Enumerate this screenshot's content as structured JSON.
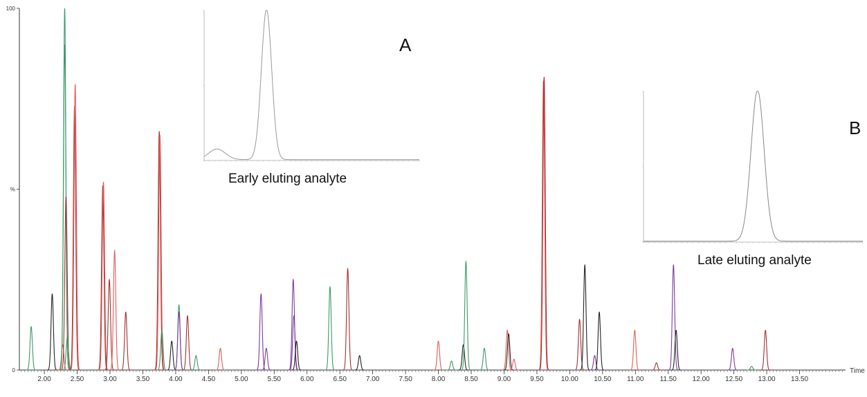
{
  "chart_data": [
    {
      "type": "line",
      "xlabel": "Time",
      "ylabel": "",
      "xlim": [
        1.62,
        14.2
      ],
      "ylim": [
        0,
        100
      ],
      "y_ticks": [
        {
          "value": 0,
          "label": "0"
        },
        {
          "value": 50,
          "label": "%"
        },
        {
          "value": 100,
          "label": "100"
        }
      ],
      "x_ticks": [
        "2.00",
        "2.50",
        "3.00",
        "3.50",
        "4.00",
        "4.50",
        "5.00",
        "5.50",
        "6.00",
        "6.50",
        "7.00",
        "7.50",
        "8.00",
        "8.50",
        "9.00",
        "9.50",
        "10.00",
        "10.50",
        "11.00",
        "11.50",
        "12.00",
        "12.50",
        "13.00",
        "13.50"
      ],
      "grid": false,
      "colors": {
        "green": "#3a9a6a",
        "black": "#222222",
        "red": "#e55a5a",
        "darkred": "#a33030",
        "purple": "#7a3aa0"
      },
      "peaks": [
        {
          "x": 1.8,
          "h": 12,
          "c": "green"
        },
        {
          "x": 2.12,
          "h": 21,
          "c": "black"
        },
        {
          "x": 2.28,
          "h": 7,
          "c": "red"
        },
        {
          "x": 2.31,
          "h": 100,
          "c": "green"
        },
        {
          "x": 2.31,
          "h": 90,
          "c": "green"
        },
        {
          "x": 2.33,
          "h": 48,
          "c": "darkred"
        },
        {
          "x": 2.35,
          "h": 9,
          "c": "green"
        },
        {
          "x": 2.46,
          "h": 73,
          "c": "darkred"
        },
        {
          "x": 2.47,
          "h": 79,
          "c": "red"
        },
        {
          "x": 2.89,
          "h": 51,
          "c": "darkred"
        },
        {
          "x": 2.9,
          "h": 52,
          "c": "red"
        },
        {
          "x": 2.99,
          "h": 25,
          "c": "darkred"
        },
        {
          "x": 3.07,
          "h": 33,
          "c": "red"
        },
        {
          "x": 3.24,
          "h": 16,
          "c": "darkred"
        },
        {
          "x": 3.75,
          "h": 66,
          "c": "darkred"
        },
        {
          "x": 3.76,
          "h": 65,
          "c": "red"
        },
        {
          "x": 3.79,
          "h": 11,
          "c": "green"
        },
        {
          "x": 3.94,
          "h": 8,
          "c": "black"
        },
        {
          "x": 4.05,
          "h": 18,
          "c": "green"
        },
        {
          "x": 4.05,
          "h": 16,
          "c": "purple"
        },
        {
          "x": 4.18,
          "h": 15,
          "c": "darkred"
        },
        {
          "x": 4.31,
          "h": 4,
          "c": "green"
        },
        {
          "x": 4.68,
          "h": 6,
          "c": "red"
        },
        {
          "x": 5.3,
          "h": 21,
          "c": "purple"
        },
        {
          "x": 5.38,
          "h": 6,
          "c": "purple"
        },
        {
          "x": 5.79,
          "h": 25,
          "c": "purple"
        },
        {
          "x": 5.8,
          "h": 15,
          "c": "purple"
        },
        {
          "x": 5.84,
          "h": 8,
          "c": "black"
        },
        {
          "x": 6.35,
          "h": 23,
          "c": "green"
        },
        {
          "x": 6.62,
          "h": 28,
          "c": "darkred"
        },
        {
          "x": 6.8,
          "h": 4,
          "c": "black"
        },
        {
          "x": 8.0,
          "h": 8,
          "c": "red"
        },
        {
          "x": 8.2,
          "h": 2.5,
          "c": "green"
        },
        {
          "x": 8.38,
          "h": 7,
          "c": "black"
        },
        {
          "x": 8.42,
          "h": 30,
          "c": "green"
        },
        {
          "x": 8.7,
          "h": 6,
          "c": "green"
        },
        {
          "x": 9.05,
          "h": 11,
          "c": "red"
        },
        {
          "x": 9.07,
          "h": 10,
          "c": "black"
        },
        {
          "x": 9.15,
          "h": 3,
          "c": "red"
        },
        {
          "x": 9.6,
          "h": 80,
          "c": "red"
        },
        {
          "x": 9.61,
          "h": 81,
          "c": "darkred"
        },
        {
          "x": 10.15,
          "h": 14,
          "c": "darkred"
        },
        {
          "x": 10.23,
          "h": 29,
          "c": "black"
        },
        {
          "x": 10.38,
          "h": 4,
          "c": "purple"
        },
        {
          "x": 10.45,
          "h": 16,
          "c": "black"
        },
        {
          "x": 10.99,
          "h": 11,
          "c": "red"
        },
        {
          "x": 11.32,
          "h": 2,
          "c": "darkred"
        },
        {
          "x": 11.58,
          "h": 29,
          "c": "purple"
        },
        {
          "x": 11.62,
          "h": 11,
          "c": "black"
        },
        {
          "x": 12.48,
          "h": 6,
          "c": "purple"
        },
        {
          "x": 12.77,
          "h": 1,
          "c": "green"
        },
        {
          "x": 12.98,
          "h": 11,
          "c": "darkred"
        }
      ]
    },
    {
      "type": "line",
      "name_label": "A",
      "caption": "Early eluting analyte",
      "xlim": [
        0,
        1
      ],
      "ylim": [
        0,
        100
      ],
      "peaks": [
        {
          "x": 0.06,
          "h": 7
        },
        {
          "x": 0.29,
          "h": 100
        }
      ],
      "color": "#999999"
    },
    {
      "type": "line",
      "name_label": "B",
      "caption": "Late eluting analyte",
      "xlim": [
        0,
        1
      ],
      "ylim": [
        0,
        100
      ],
      "peaks": [
        {
          "x": 0.52,
          "h": 100
        }
      ],
      "color": "#888888"
    }
  ]
}
